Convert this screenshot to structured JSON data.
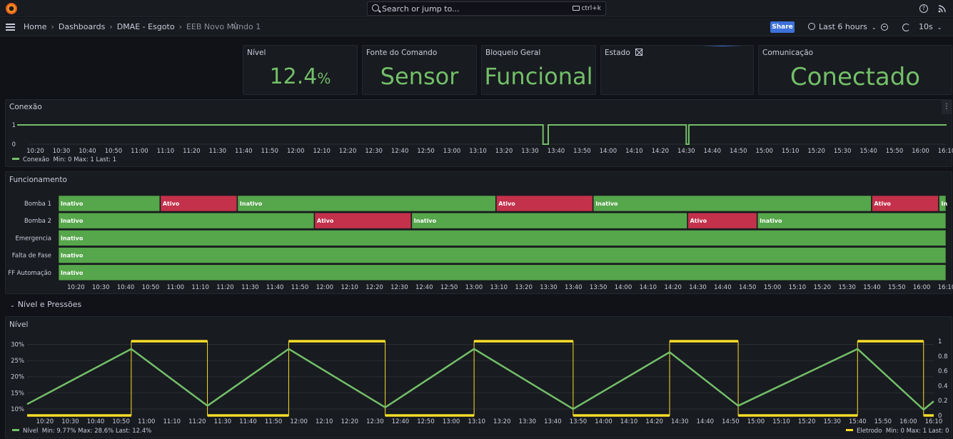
{
  "topbar": {
    "search_placeholder": "Search or jump to...",
    "search_shortcut": "ctrl+k"
  },
  "breadcrumb": {
    "items": [
      "Home",
      "Dashboards",
      "DMAE - Esgoto",
      "EEB Novo Mundo 1"
    ]
  },
  "toolbar": {
    "share_label": "Share",
    "time_range": "Last 6 hours",
    "refresh_interval": "10s"
  },
  "stats": {
    "nivel": {
      "title": "Nível",
      "value": "12.4",
      "unit": "%"
    },
    "fonte": {
      "title": "Fonte do Comando",
      "value": "Sensor"
    },
    "bloqueio": {
      "title": "Bloqueio Geral",
      "value": "Funcional"
    },
    "estado": {
      "title": "Estado"
    },
    "comunicacao": {
      "title": "Comunicação",
      "value": "Conectado"
    }
  },
  "time_ticks": [
    "10:20",
    "10:30",
    "10:40",
    "10:50",
    "11:00",
    "11:10",
    "11:20",
    "11:30",
    "11:40",
    "11:50",
    "12:00",
    "12:10",
    "12:20",
    "12:30",
    "12:40",
    "12:50",
    "13:00",
    "13:10",
    "13:20",
    "13:30",
    "13:40",
    "13:50",
    "14:00",
    "14:10",
    "14:20",
    "14:30",
    "14:40",
    "14:50",
    "15:00",
    "15:10",
    "15:20",
    "15:30",
    "15:40",
    "15:50",
    "16:00",
    "16:10"
  ],
  "conexao": {
    "title": "Conexão",
    "legend": {
      "name": "Conexão",
      "stats": "Min: 0   Max: 1   Last: 1",
      "color": "#73bf69"
    },
    "chart_data": {
      "type": "line",
      "y_ticks": [
        "1",
        "0"
      ],
      "ylim": [
        0,
        1
      ],
      "x_range": [
        "10:13",
        "16:10"
      ],
      "drops": [
        [
          "13:35",
          "13:37"
        ],
        [
          "14:30",
          "14:31"
        ]
      ],
      "value": 1
    }
  },
  "funcionamento": {
    "title": "Funcionamento",
    "colors": {
      "Inativo": "#56a64b",
      "Ativo": "#c4314b"
    },
    "chart_data": {
      "type": "state-timeline",
      "x_range": [
        "10:13",
        "16:10"
      ],
      "rows": [
        {
          "label": "Bomba 1",
          "segments": [
            {
              "state": "Inativo",
              "start": "10:13",
              "end": "10:54"
            },
            {
              "state": "Ativo",
              "start": "10:54",
              "end": "11:25"
            },
            {
              "state": "Inativo",
              "start": "11:25",
              "end": "13:09"
            },
            {
              "state": "Ativo",
              "start": "13:09",
              "end": "13:48"
            },
            {
              "state": "Inativo",
              "start": "13:48",
              "end": "15:40"
            },
            {
              "state": "Ativo",
              "start": "15:40",
              "end": "16:07"
            },
            {
              "state": "In",
              "start": "16:07",
              "end": "16:10"
            }
          ]
        },
        {
          "label": "Bomba 2",
          "segments": [
            {
              "state": "Inativo",
              "start": "10:13",
              "end": "11:56"
            },
            {
              "state": "Ativo",
              "start": "11:56",
              "end": "12:35"
            },
            {
              "state": "Inativo",
              "start": "12:35",
              "end": "14:26"
            },
            {
              "state": "Ativo",
              "start": "14:26",
              "end": "14:54"
            },
            {
              "state": "Inativo",
              "start": "14:54",
              "end": "16:10"
            }
          ]
        },
        {
          "label": "Emergencia",
          "segments": [
            {
              "state": "Inativo",
              "start": "10:13",
              "end": "16:10"
            }
          ]
        },
        {
          "label": "Falta de Fase",
          "segments": [
            {
              "state": "Inativo",
              "start": "10:13",
              "end": "16:10"
            }
          ]
        },
        {
          "label": "FF Automação",
          "segments": [
            {
              "state": "Inativo",
              "start": "10:13",
              "end": "16:10"
            }
          ]
        }
      ]
    }
  },
  "row_header": "Nível e Pressões",
  "nivel_chart": {
    "title": "Nível",
    "legend_left": {
      "name": "Nível",
      "stats": "Min: 9.77%   Max: 28.6%   Last: 12.4%",
      "color": "#73bf69"
    },
    "legend_right": {
      "name": "Eletrodo",
      "stats": "Min: 0   Max: 1   Last: 0",
      "color": "#fade2a"
    },
    "chart_data": {
      "type": "line",
      "x_range": [
        "10:13",
        "16:10"
      ],
      "y_left_ticks": [
        "30%",
        "25%",
        "20%",
        "15%",
        "10%"
      ],
      "y_left_range": [
        8,
        31
      ],
      "y_right_ticks": [
        "1",
        "0.8",
        "0.6",
        "0.4",
        "0.2",
        "0"
      ],
      "y_right_range": [
        0,
        1
      ],
      "series": [
        {
          "name": "Nível",
          "axis": "left",
          "points": [
            [
              "10:13",
              11.5
            ],
            [
              "10:54",
              28.6
            ],
            [
              "11:24",
              11.0
            ],
            [
              "11:56",
              28.6
            ],
            [
              "12:34",
              10.5
            ],
            [
              "13:09",
              28.6
            ],
            [
              "13:48",
              10.0
            ],
            [
              "14:26",
              27.6
            ],
            [
              "14:53",
              11.0
            ],
            [
              "15:40",
              28.6
            ],
            [
              "16:06",
              9.8
            ],
            [
              "16:10",
              12.4
            ]
          ]
        },
        {
          "name": "Eletrodo",
          "axis": "right",
          "steps": [
            [
              "10:13",
              0
            ],
            [
              "10:54",
              1
            ],
            [
              "11:24",
              0
            ],
            [
              "11:56",
              1
            ],
            [
              "12:34",
              0
            ],
            [
              "13:09",
              1
            ],
            [
              "13:48",
              0
            ],
            [
              "14:26",
              1
            ],
            [
              "14:53",
              0
            ],
            [
              "15:40",
              1
            ],
            [
              "16:06",
              0
            ],
            [
              "16:10",
              0
            ]
          ]
        }
      ]
    }
  }
}
